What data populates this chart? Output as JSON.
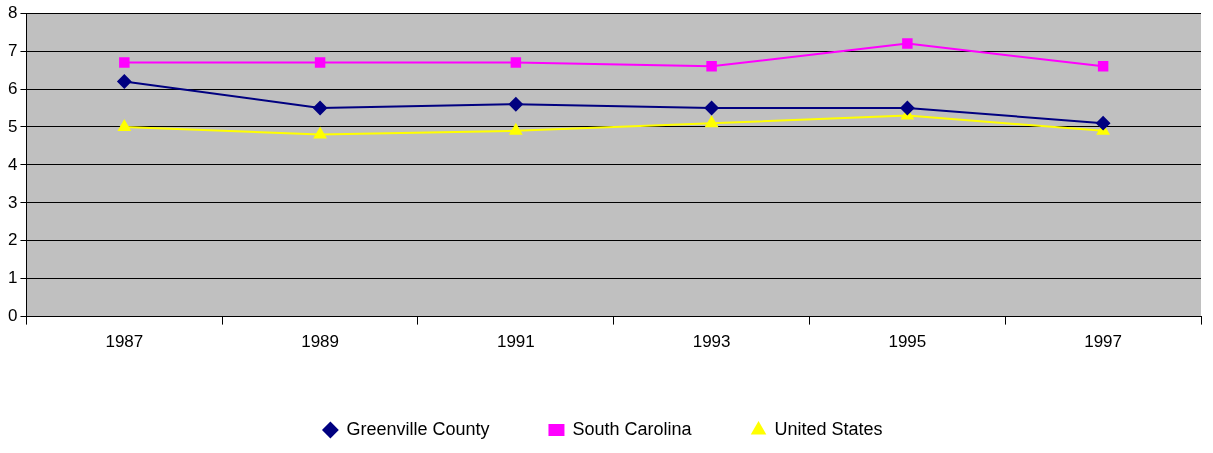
{
  "chart_data": {
    "type": "line",
    "categories": [
      "1987",
      "1989",
      "1991",
      "1993",
      "1995",
      "1997"
    ],
    "series": [
      {
        "name": "Greenville County",
        "color": "#000080",
        "marker": "diamond",
        "values": [
          6.2,
          5.5,
          5.6,
          5.5,
          5.5,
          5.1
        ]
      },
      {
        "name": "South Carolina",
        "color": "#ff00ff",
        "marker": "square",
        "values": [
          6.7,
          6.7,
          6.7,
          6.6,
          7.2,
          6.6
        ]
      },
      {
        "name": "United States",
        "color": "#ffff00",
        "marker": "triangle",
        "values": [
          5.0,
          4.8,
          4.9,
          5.1,
          5.3,
          4.9
        ]
      }
    ],
    "ylim": [
      0,
      8
    ],
    "yticks": [
      0,
      1,
      2,
      3,
      4,
      5,
      6,
      7,
      8
    ],
    "grid": "y",
    "legend": "bottom",
    "line_style": "solid"
  }
}
